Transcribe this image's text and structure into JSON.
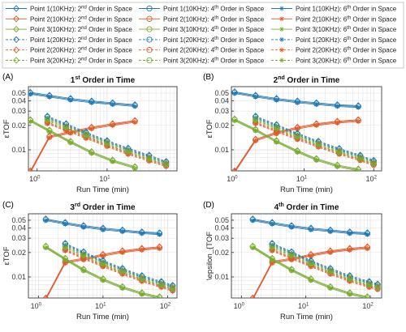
{
  "colors": {
    "point1": "#1f77b4",
    "point2": "#e2592a",
    "point3": "#77ac30",
    "grid": "#dcdcdc",
    "axes": "#262626"
  },
  "legend": {
    "columns": [
      [
        "Point 1(10KHz): 2nd Order in Space",
        "Point 2(10KHz): 2nd Order in Space",
        "Point 3(10KHz): 2nd Order in Space",
        "Point 1(20KHz): 2nd Order in Space",
        "Point 2(20KHz): 2nd Order in Space",
        "Point 3(20KHz): 2nd Order in Space"
      ],
      [
        "Point 1(10KHz): 4th Order in Space",
        "Point 2(10KHz): 4th Order in Space",
        "Point 3(10KHz): 4th Order in Space",
        "Point 1(20KHz): 4th Order in Space",
        "Point 2(20KHz): 4th Order in Space",
        "Point 3(20KHz): 4th Order in Space"
      ],
      [
        "Point 1(10KHz): 6th Order in Space",
        "Point 2(10KHz): 6th Order in Space",
        "Point 3(10KHz): 6th Order in Space",
        "Point 1(20KHz): 6th Order in Space",
        "Point 2(20KHz): 6th Order in Space",
        "Point 3(20KHz): 6th Order in Space"
      ]
    ]
  },
  "chart_data": [
    {
      "panel_label": "(A)",
      "title": "1st Order in Time",
      "type": "line",
      "xlabel": "Run Time (min)",
      "ylabel": "εTOF",
      "xscale": "log",
      "yscale": "log",
      "xlim": [
        0.75,
        100
      ],
      "ylim": [
        0.0055,
        0.06
      ],
      "xticks": [
        1,
        10
      ],
      "xtick_labels": [
        "10^0",
        "10^1"
      ],
      "yticks": [
        0.01,
        0.02,
        0.03,
        0.04,
        0.05
      ],
      "ytick_labels": [
        "0.01",
        "0.02",
        "0.03",
        "0.04",
        "0.05"
      ],
      "grid": true,
      "series": [
        {
          "name": "Point 1(10KHz): 2nd Order in Space",
          "x": [
            0.8,
            1.5,
            3,
            6,
            12,
            25
          ],
          "y": [
            0.051,
            0.047,
            0.043,
            0.04,
            0.038,
            0.036
          ]
        },
        {
          "name": "Point 2(10KHz): 2nd Order in Space",
          "x": [
            0.8,
            1.5,
            3,
            6,
            12,
            25
          ],
          "y": [
            0.0055,
            0.0148,
            0.0168,
            0.019,
            0.021,
            0.023
          ]
        },
        {
          "name": "Point 3(10KHz): 2nd Order in Space",
          "x": [
            0.8,
            1.5,
            3,
            6,
            12,
            25
          ],
          "y": [
            0.0235,
            0.0175,
            0.0128,
            0.0095,
            0.0075,
            0.0062
          ]
        },
        {
          "name": "Point 1(20KHz): 2nd Order in Space",
          "x": [
            1.4,
            2.6,
            5,
            10,
            20,
            40,
            70
          ],
          "y": [
            0.026,
            0.021,
            0.0165,
            0.013,
            0.0105,
            0.0086,
            0.0072
          ]
        },
        {
          "name": "Point 2(20KHz): 2nd Order in Space",
          "x": [
            1.4,
            2.6,
            5,
            10,
            20,
            40,
            70
          ],
          "y": [
            0.022,
            0.018,
            0.0145,
            0.0115,
            0.0092,
            0.0076,
            0.0065
          ]
        },
        {
          "name": "Point 3(20KHz): 2nd Order in Space",
          "x": [
            1.4,
            2.6,
            5,
            10,
            20,
            40,
            70
          ],
          "y": [
            0.024,
            0.0195,
            0.0155,
            0.0123,
            0.0098,
            0.008,
            0.0068
          ]
        }
      ]
    },
    {
      "panel_label": "(B)",
      "title": "2nd Order in Time",
      "type": "line",
      "xlabel": "Run Time (min)",
      "ylabel": "εTOF",
      "xscale": "log",
      "yscale": "log",
      "xlim": [
        0.9,
        130
      ],
      "ylim": [
        0.0055,
        0.06
      ],
      "xticks": [
        1,
        10,
        100
      ],
      "xtick_labels": [
        "10^0",
        "10^1",
        "10^2"
      ],
      "yticks": [
        0.01,
        0.02,
        0.03,
        0.04,
        0.05
      ],
      "ytick_labels": [
        "0.01",
        "0.02",
        "0.03",
        "0.04",
        "0.05"
      ],
      "grid": true,
      "series": [
        {
          "name": "Point 1(10KHz): 2nd Order in Space",
          "x": [
            1,
            2,
            4,
            8,
            15,
            30,
            60
          ],
          "y": [
            0.052,
            0.047,
            0.043,
            0.04,
            0.038,
            0.036,
            0.035
          ]
        },
        {
          "name": "Point 2(10KHz): 2nd Order in Space",
          "x": [
            1,
            2,
            4,
            8,
            15,
            30,
            60
          ],
          "y": [
            0.0055,
            0.0135,
            0.0165,
            0.019,
            0.021,
            0.0225,
            0.0235
          ]
        },
        {
          "name": "Point 3(10KHz): 2nd Order in Space",
          "x": [
            1,
            2,
            4,
            8,
            15,
            30,
            60
          ],
          "y": [
            0.024,
            0.018,
            0.013,
            0.0098,
            0.0078,
            0.0065,
            0.0058
          ]
        },
        {
          "name": "Point 1(20KHz): 2nd Order in Space",
          "x": [
            2,
            4,
            8,
            16,
            32,
            64,
            100
          ],
          "y": [
            0.026,
            0.0205,
            0.016,
            0.0128,
            0.0104,
            0.0086,
            0.0074
          ]
        },
        {
          "name": "Point 2(20KHz): 2nd Order in Space",
          "x": [
            2,
            4,
            8,
            16,
            32,
            64,
            100
          ],
          "y": [
            0.022,
            0.0175,
            0.014,
            0.0113,
            0.0092,
            0.0077,
            0.0067
          ]
        },
        {
          "name": "Point 3(20KHz): 2nd Order in Space",
          "x": [
            2,
            4,
            8,
            16,
            32,
            64,
            100
          ],
          "y": [
            0.024,
            0.019,
            0.015,
            0.012,
            0.0097,
            0.0081,
            0.007
          ]
        }
      ]
    },
    {
      "panel_label": "(C)",
      "title": "3rd Order in Time",
      "type": "line",
      "xlabel": "Run Time (min)",
      "ylabel": "εTOF",
      "xscale": "log",
      "yscale": "log",
      "xlim": [
        0.7,
        140
      ],
      "ylim": [
        0.0055,
        0.06
      ],
      "xticks": [
        1,
        10,
        100
      ],
      "xtick_labels": [
        "10^0",
        "10^1",
        "10^2"
      ],
      "yticks": [
        0.01,
        0.02,
        0.03,
        0.04,
        0.05
      ],
      "ytick_labels": [
        "0.01",
        "0.02",
        "0.03",
        "0.04",
        "0.05"
      ],
      "grid": true,
      "series": [
        {
          "name": "Point 1(10KHz): 2nd Order in Space",
          "x": [
            1.3,
            2.6,
            5,
            10,
            20,
            40,
            75
          ],
          "y": [
            0.052,
            0.047,
            0.043,
            0.04,
            0.038,
            0.036,
            0.035
          ]
        },
        {
          "name": "Point 2(10KHz): 2nd Order in Space",
          "x": [
            1.3,
            2.6,
            5,
            10,
            20,
            40,
            75
          ],
          "y": [
            0.0055,
            0.0155,
            0.017,
            0.019,
            0.021,
            0.0225,
            0.0235
          ]
        },
        {
          "name": "Point 3(10KHz): 2nd Order in Space",
          "x": [
            1.3,
            2.6,
            5,
            10,
            20,
            40,
            75
          ],
          "y": [
            0.024,
            0.017,
            0.0125,
            0.0095,
            0.0076,
            0.0064,
            0.0057
          ]
        },
        {
          "name": "Point 1(20KHz): 2nd Order in Space",
          "x": [
            2.6,
            5,
            10,
            20,
            40,
            80,
            120
          ],
          "y": [
            0.026,
            0.0205,
            0.016,
            0.0128,
            0.0104,
            0.0088,
            0.0079
          ]
        },
        {
          "name": "Point 2(20KHz): 2nd Order in Space",
          "x": [
            2.6,
            5,
            10,
            20,
            40,
            80,
            120
          ],
          "y": [
            0.022,
            0.0175,
            0.014,
            0.0113,
            0.0092,
            0.0078,
            0.007
          ]
        },
        {
          "name": "Point 3(20KHz): 2nd Order in Space",
          "x": [
            2.6,
            5,
            10,
            20,
            40,
            80,
            120
          ],
          "y": [
            0.024,
            0.019,
            0.015,
            0.012,
            0.0097,
            0.0082,
            0.0074
          ]
        }
      ]
    },
    {
      "panel_label": "(D)",
      "title": "4th Order in Time",
      "type": "line",
      "xlabel": "Run Time (min)",
      "ylabel": "\\epsilon_{TOF",
      "xscale": "log",
      "yscale": "log",
      "xlim": [
        0.7,
        150
      ],
      "ylim": [
        0.0055,
        0.06
      ],
      "xticks": [
        1,
        10,
        100
      ],
      "xtick_labels": [
        "10^0",
        "10^1",
        "10^2"
      ],
      "yticks": [
        0.01,
        0.02,
        0.03,
        0.04,
        0.05
      ],
      "ytick_labels": [
        "0.01",
        "0.02",
        "0.03",
        "0.04",
        "0.05"
      ],
      "grid": true,
      "series": [
        {
          "name": "Point 1(10KHz): 2nd Order in Space",
          "x": [
            1.5,
            3,
            6,
            12,
            24,
            48,
            90
          ],
          "y": [
            0.052,
            0.047,
            0.043,
            0.04,
            0.038,
            0.036,
            0.035
          ]
        },
        {
          "name": "Point 2(10KHz): 2nd Order in Space",
          "x": [
            1.5,
            3,
            6,
            12,
            24,
            48,
            90
          ],
          "y": [
            0.0055,
            0.0155,
            0.017,
            0.019,
            0.021,
            0.0225,
            0.0235
          ]
        },
        {
          "name": "Point 3(10KHz): 2nd Order in Space",
          "x": [
            1.5,
            3,
            6,
            12,
            24,
            48,
            90
          ],
          "y": [
            0.024,
            0.017,
            0.0125,
            0.0095,
            0.0076,
            0.0064,
            0.0057
          ]
        },
        {
          "name": "Point 1(20KHz): 2nd Order in Space",
          "x": [
            3,
            6,
            12,
            24,
            48,
            96,
            130
          ],
          "y": [
            0.026,
            0.0205,
            0.016,
            0.0128,
            0.0104,
            0.0088,
            0.0082
          ]
        },
        {
          "name": "Point 2(20KHz): 2nd Order in Space",
          "x": [
            3,
            6,
            12,
            24,
            48,
            96,
            130
          ],
          "y": [
            0.022,
            0.0175,
            0.014,
            0.0113,
            0.0092,
            0.0078,
            0.0073
          ]
        },
        {
          "name": "Point 3(20KHz): 2nd Order in Space",
          "x": [
            3,
            6,
            12,
            24,
            48,
            96,
            130
          ],
          "y": [
            0.024,
            0.019,
            0.015,
            0.012,
            0.0097,
            0.0082,
            0.0077
          ]
        }
      ]
    }
  ]
}
